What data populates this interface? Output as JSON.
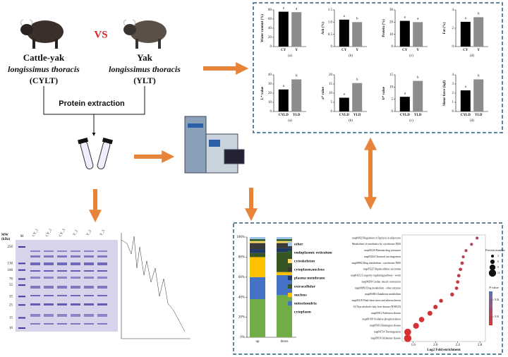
{
  "samples": {
    "left": {
      "name": "Cattle-yak",
      "tissue": "longissimus thoracis",
      "code": "(CYLT)"
    },
    "vs": "VS",
    "right": {
      "name": "Yak",
      "tissue": "longissimus thoracis",
      "code": "(YLT)"
    }
  },
  "step": "Protein extraction",
  "quality_charts": [
    {
      "y_label": "Water content (%)",
      "panel": "(a)",
      "categories": [
        "CY",
        "Y"
      ],
      "values": [
        76,
        75
      ],
      "letters": [
        "a",
        "a"
      ],
      "ylim": [
        0,
        80
      ],
      "yticks": [
        0,
        20,
        40,
        60,
        80
      ]
    },
    {
      "y_label": "Ash (%)",
      "panel": "(b)",
      "categories": [
        "CY",
        "Y"
      ],
      "values": [
        1.1,
        1.0
      ],
      "letters": [
        "a",
        "b"
      ],
      "ylim": [
        0,
        1.5
      ],
      "yticks": [
        0,
        0.5,
        {
          "value": 1,
          "label": "1.0"
        },
        1.5
      ]
    },
    {
      "y_label": "Protein (%)",
      "panel": "(c)",
      "categories": [
        "CY",
        "Y"
      ],
      "values": [
        21,
        20
      ],
      "letters": [
        "a",
        "a"
      ],
      "ylim": [
        0,
        30
      ],
      "yticks": [
        0,
        10,
        20,
        30
      ]
    },
    {
      "y_label": "Fat (%)",
      "panel": "(d)",
      "categories": [
        "CY",
        "Y"
      ],
      "values": [
        2.7,
        3.2
      ],
      "letters": [
        "a",
        "b"
      ],
      "ylim": [
        0,
        4
      ],
      "yticks": [
        0,
        2,
        4
      ]
    },
    {
      "y_label": "L* value",
      "panel": "(a)",
      "categories": [
        "CYLD",
        "YLD"
      ],
      "values": [
        24,
        35
      ],
      "letters": [
        "a",
        "b"
      ],
      "ylim": [
        0,
        40
      ],
      "yticks": [
        0,
        10,
        20,
        30,
        40
      ]
    },
    {
      "y_label": "a* value",
      "panel": "(b)",
      "categories": [
        "CYLD",
        "YLD"
      ],
      "values": [
        7.5,
        15.5
      ],
      "letters": [
        "a",
        "b"
      ],
      "ylim": [
        0,
        20
      ],
      "yticks": [
        0,
        5,
        10,
        15,
        20
      ]
    },
    {
      "y_label": "b* value",
      "panel": "(c)",
      "categories": [
        "CYLD",
        "YLD"
      ],
      "values": [
        6,
        12.5
      ],
      "letters": [
        "a",
        "b"
      ],
      "ylim": [
        0,
        15
      ],
      "yticks": [
        0,
        5,
        10,
        15
      ]
    },
    {
      "y_label": "Shear force (kgf)",
      "panel": "(d)",
      "categories": [
        "CYLD",
        "YLD"
      ],
      "values": [
        2.3,
        3.5
      ],
      "letters": [
        "a",
        "b"
      ],
      "ylim": [
        0,
        4
      ],
      "yticks": [
        0,
        1,
        2,
        3,
        4
      ]
    }
  ],
  "bar_colors": [
    "#000000",
    "#8c8c8c"
  ],
  "gel": {
    "mw_label": "MW",
    "unit_label": "(kDa)",
    "marker_lane": "M",
    "lanes": [
      "CY_1",
      "CY_2",
      "CY_3",
      "Y_1",
      "Y_2",
      "Y_3"
    ],
    "markers": [
      250,
      130,
      100,
      70,
      55,
      35,
      25,
      15,
      10
    ]
  },
  "composition": {
    "categories": [
      "up",
      "down"
    ],
    "ylim": [
      0,
      100
    ],
    "yticks": [
      {
        "value": 0,
        "label": "0%"
      },
      {
        "value": 20,
        "label": "20%"
      },
      {
        "value": 40,
        "label": "40%"
      },
      {
        "value": 60,
        "label": "60%"
      },
      {
        "value": 80,
        "label": "80%"
      },
      {
        "value": 100,
        "label": "100%"
      }
    ],
    "series": [
      {
        "name": "cytoplasm",
        "color": "#70ad47",
        "values": [
          38,
          42
        ]
      },
      {
        "name": "mitochondria",
        "color": "#4472c4",
        "values": [
          22,
          20
        ]
      },
      {
        "name": "nucleus",
        "color": "#ffc000",
        "values": [
          20,
          3
        ]
      },
      {
        "name": "extracellular",
        "color": "#375623",
        "values": [
          4,
          20
        ]
      },
      {
        "name": "plasma membrane",
        "color": "#203864",
        "values": [
          4,
          4
        ]
      },
      {
        "name": "cytoplasm,nucleus",
        "color": "#3a3a3a",
        "values": [
          6,
          5
        ]
      },
      {
        "name": "cytoskeleton",
        "color": "#ffd966",
        "values": [
          2,
          2
        ]
      },
      {
        "name": "endoplasmic reticulum",
        "color": "#2e5d2e",
        "values": [
          2,
          2
        ]
      },
      {
        "name": "other",
        "color": "#9dc3e6",
        "values": [
          2,
          2
        ]
      }
    ]
  },
  "enrichment": {
    "x_label": "Log2 Fold enrichment",
    "pathways": [
      "map04923 Regulation of lipolysis in adipocytes",
      "Metabolism of xenobiotics by cytochrome P450",
      "map05226 Platinum drug resistance",
      "map05204 Chemical carcinogenesis",
      "map00982 Drug metabolism - cytochrome P450",
      "map05225 Hepatocellular carcinoma",
      "map04212 Longevity regulating pathway - worm",
      "map04260 Cardiac muscle contraction",
      "map00983 Drug metabolism - other enzymes",
      "map00480 Glutathione metabolism",
      "map05418 Fluid shear stress and atherosclerosis",
      "O2 Non-alcoholic fatty liver disease (NAFLD)",
      "map05012 Parkinson disease",
      "map00190 Oxidative phosphorylation",
      "map05016 Huntington disease",
      "map04714 Thermogenesis",
      "map05010 Alzheimer disease"
    ],
    "x": [
      2.75,
      2.65,
      2.55,
      2.5,
      2.48,
      2.45,
      2.42,
      2.4,
      2.38,
      2.3,
      2.1,
      2.0,
      1.9,
      1.75,
      1.65,
      1.5,
      1.5
    ],
    "sizes": [
      3,
      3,
      3,
      3,
      4,
      4,
      4,
      4,
      4,
      5,
      5,
      6,
      7,
      8,
      9,
      11,
      12
    ],
    "p_values": [
      0.012,
      0.011,
      0.01,
      0.01,
      0.009,
      0.009,
      0.009,
      0.008,
      0.008,
      0.008,
      0.007,
      0.007,
      0.006,
      0.006,
      0.006,
      0.005,
      0.005
    ],
    "xlim": [
      1.4,
      2.9
    ],
    "xticks": [
      1.6,
      {
        "value": 2,
        "label": "2.0"
      },
      2.4,
      2.8
    ],
    "size_title": "Protein number",
    "size_ticks": [
      3,
      6,
      9,
      12
    ],
    "p_title": "P value",
    "p_lim": [
      0.005,
      0.025
    ],
    "p_ticks": [
      0.02,
      0.01
    ]
  }
}
